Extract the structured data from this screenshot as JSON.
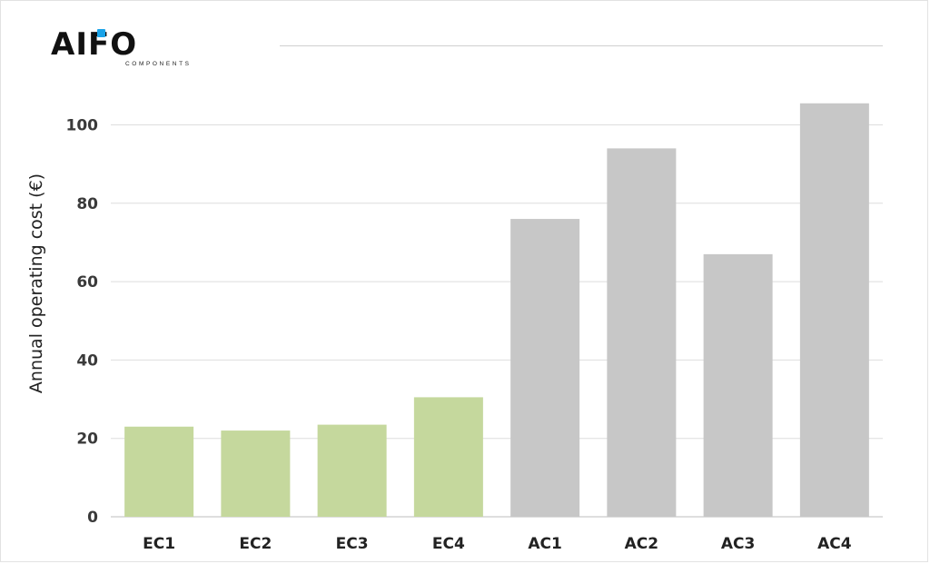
{
  "logo": {
    "text": "AIFO",
    "subtext": "COMPONENTS",
    "accent_color": "#1aa3e8"
  },
  "chart_data": {
    "type": "bar",
    "categories": [
      "EC1",
      "EC2",
      "EC3",
      "EC4",
      "AC1",
      "AC2",
      "AC3",
      "AC4"
    ],
    "values": [
      23,
      22,
      23.5,
      30.5,
      76,
      94,
      67,
      105.5
    ],
    "colors": [
      "#c5d89d",
      "#c5d89d",
      "#c5d89d",
      "#c5d89d",
      "#c7c7c7",
      "#c7c7c7",
      "#c7c7c7",
      "#c7c7c7"
    ],
    "ylabel": "Annual operating cost (€)",
    "xlabel": "",
    "ylim": [
      0,
      110
    ],
    "yticks": [
      0,
      20,
      40,
      60,
      80,
      100
    ],
    "grid": true
  }
}
